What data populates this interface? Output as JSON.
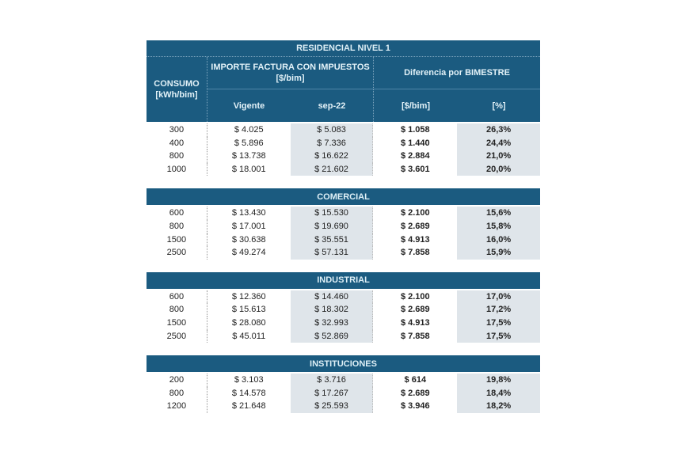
{
  "header": {
    "title": "RESIDENCIAL NIVEL 1",
    "consumo": "CONSUMO",
    "consumo_unit": "[kWh/bim]",
    "importe": "IMPORTE FACTURA CON IMPUESTOS",
    "importe_unit": "[$/bim]",
    "diferencia": "Diferencia por BIMESTRE",
    "vigente": "Vigente",
    "sep22": "sep-22",
    "dif_pesos": "[$/bim]",
    "dif_pct": "[%]"
  },
  "colors": {
    "header_bg": "#1b5b80",
    "shaded_cell": "#dfe5ea"
  },
  "sections": [
    {
      "name": "RESIDENCIAL NIVEL 1",
      "rows": [
        [
          "300",
          "$ 4.025",
          "$ 5.083",
          "$ 1.058",
          "26,3%"
        ],
        [
          "400",
          "$ 5.896",
          "$ 7.336",
          "$ 1.440",
          "24,4%"
        ],
        [
          "800",
          "$ 13.738",
          "$ 16.622",
          "$ 2.884",
          "21,0%"
        ],
        [
          "1000",
          "$ 18.001",
          "$ 21.602",
          "$ 3.601",
          "20,0%"
        ]
      ]
    },
    {
      "name": "COMERCIAL",
      "rows": [
        [
          "600",
          "$ 13.430",
          "$ 15.530",
          "$ 2.100",
          "15,6%"
        ],
        [
          "800",
          "$ 17.001",
          "$ 19.690",
          "$ 2.689",
          "15,8%"
        ],
        [
          "1500",
          "$ 30.638",
          "$ 35.551",
          "$ 4.913",
          "16,0%"
        ],
        [
          "2500",
          "$ 49.274",
          "$ 57.131",
          "$ 7.858",
          "15,9%"
        ]
      ]
    },
    {
      "name": "INDUSTRIAL",
      "rows": [
        [
          "600",
          "$ 12.360",
          "$ 14.460",
          "$ 2.100",
          "17,0%"
        ],
        [
          "800",
          "$ 15.613",
          "$ 18.302",
          "$ 2.689",
          "17,2%"
        ],
        [
          "1500",
          "$ 28.080",
          "$ 32.993",
          "$ 4.913",
          "17,5%"
        ],
        [
          "2500",
          "$ 45.011",
          "$ 52.869",
          "$ 7.858",
          "17,5%"
        ]
      ]
    },
    {
      "name": "INSTITUCIONES",
      "rows": [
        [
          "200",
          "$ 3.103",
          "$ 3.716",
          "$ 614",
          "19,8%"
        ],
        [
          "800",
          "$ 14.578",
          "$ 17.267",
          "$ 2.689",
          "18,4%"
        ],
        [
          "1200",
          "$ 21.648",
          "$ 25.593",
          "$ 3.946",
          "18,2%"
        ]
      ]
    }
  ]
}
